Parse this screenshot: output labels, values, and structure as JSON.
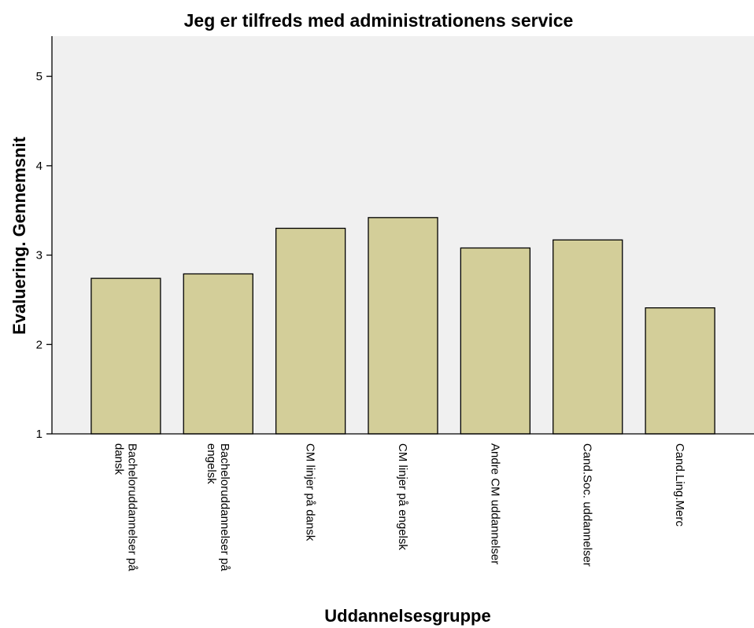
{
  "chart_data": {
    "type": "bar",
    "title": "Jeg er tilfreds med administrationens service",
    "xlabel": "Uddannelsesgruppe",
    "ylabel": "Evaluering. Gennemsnit",
    "ylim": [
      1,
      5.45
    ],
    "yticks": [
      1,
      2,
      3,
      4,
      5
    ],
    "grid": false,
    "categories": [
      [
        "Bacheloruddannelser på",
        "dansk"
      ],
      [
        "Bacheloruddannelser på",
        "engelsk"
      ],
      [
        "CM linjer på dansk"
      ],
      [
        "CM linjer på engelsk"
      ],
      [
        "Andre CM uddannelser"
      ],
      [
        "Cand.Soc. uddannelser"
      ],
      [
        "Cand.Ling.Merc"
      ]
    ],
    "values": [
      2.74,
      2.79,
      3.3,
      3.42,
      3.08,
      3.17,
      2.41
    ],
    "colors": {
      "bar_fill": "#d3ce99",
      "plot_background": "#f0f0f0"
    }
  }
}
